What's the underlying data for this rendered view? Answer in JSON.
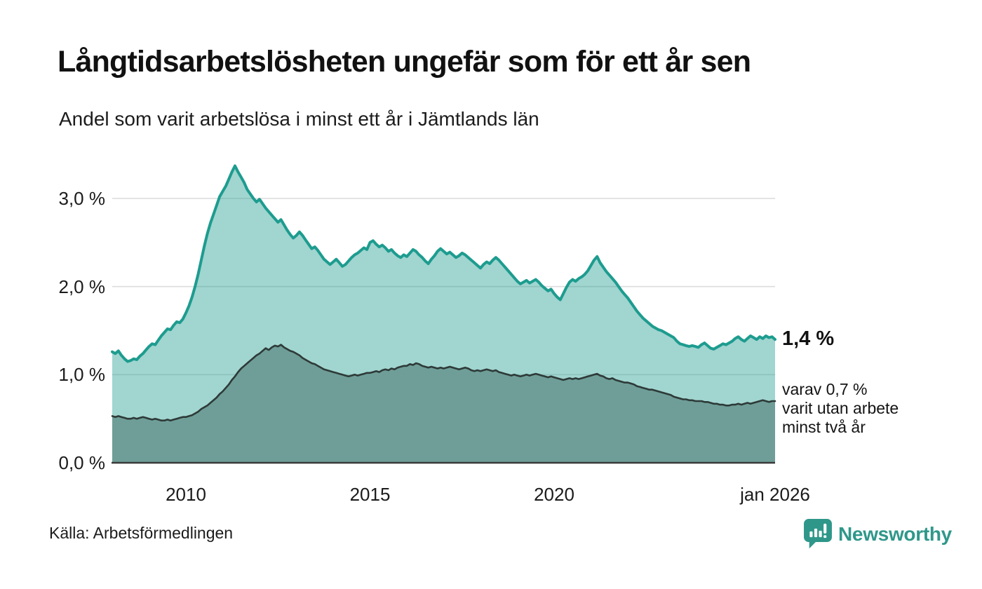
{
  "header": {
    "title": "Långtidsarbetslösheten ungefär som för ett år sen",
    "subtitle": "Andel som varit arbetslösa i minst ett år i Jämtlands län"
  },
  "chart_data": {
    "type": "area",
    "title": "Långtidsarbetslösheten ungefär som för ett år sen",
    "subtitle": "Andel som varit arbetslösa i minst ett år i Jämtlands län",
    "unit": "percent",
    "x_start": "2008-01",
    "x_end": "2026-01",
    "interval": "monthly",
    "grid": true,
    "ylim": [
      0,
      3.4
    ],
    "x_ticks": [
      {
        "index": 24,
        "label": "2010"
      },
      {
        "index": 84,
        "label": "2015"
      },
      {
        "index": 144,
        "label": "2020"
      },
      {
        "index": 216,
        "label": "jan 2026"
      }
    ],
    "y_ticks": [
      {
        "value": 0,
        "label": "0,0 %"
      },
      {
        "value": 1,
        "label": "1,0 %"
      },
      {
        "value": 2,
        "label": "2,0 %"
      },
      {
        "value": 3,
        "label": "3,0 %"
      }
    ],
    "series": [
      {
        "name": "Andel arbetslösa minst ett år",
        "line_color": "#1d9c8f",
        "fill_color": "rgba(30,155,143,0.42)",
        "end_value": 1.4,
        "values": [
          1.26,
          1.24,
          1.27,
          1.22,
          1.18,
          1.15,
          1.16,
          1.18,
          1.17,
          1.21,
          1.24,
          1.28,
          1.32,
          1.35,
          1.34,
          1.39,
          1.44,
          1.48,
          1.52,
          1.51,
          1.56,
          1.6,
          1.59,
          1.63,
          1.7,
          1.78,
          1.88,
          2,
          2.14,
          2.3,
          2.46,
          2.6,
          2.72,
          2.82,
          2.92,
          3.02,
          3.08,
          3.14,
          3.22,
          3.3,
          3.37,
          3.3,
          3.24,
          3.18,
          3.1,
          3.05,
          3,
          2.96,
          2.99,
          2.94,
          2.89,
          2.85,
          2.81,
          2.77,
          2.73,
          2.76,
          2.7,
          2.64,
          2.59,
          2.55,
          2.58,
          2.62,
          2.58,
          2.53,
          2.48,
          2.43,
          2.45,
          2.41,
          2.36,
          2.31,
          2.28,
          2.25,
          2.28,
          2.31,
          2.27,
          2.23,
          2.25,
          2.29,
          2.33,
          2.36,
          2.38,
          2.41,
          2.44,
          2.42,
          2.5,
          2.52,
          2.48,
          2.45,
          2.47,
          2.44,
          2.4,
          2.42,
          2.38,
          2.35,
          2.33,
          2.36,
          2.34,
          2.38,
          2.42,
          2.4,
          2.36,
          2.33,
          2.29,
          2.26,
          2.31,
          2.35,
          2.4,
          2.43,
          2.4,
          2.37,
          2.39,
          2.36,
          2.33,
          2.35,
          2.38,
          2.36,
          2.33,
          2.3,
          2.27,
          2.24,
          2.21,
          2.25,
          2.28,
          2.26,
          2.3,
          2.33,
          2.3,
          2.26,
          2.22,
          2.18,
          2.14,
          2.1,
          2.06,
          2.03,
          2.05,
          2.07,
          2.04,
          2.06,
          2.08,
          2.05,
          2.01,
          1.98,
          1.95,
          1.97,
          1.92,
          1.88,
          1.85,
          1.92,
          1.99,
          2.05,
          2.08,
          2.06,
          2.09,
          2.11,
          2.14,
          2.18,
          2.24,
          2.3,
          2.34,
          2.27,
          2.22,
          2.17,
          2.13,
          2.09,
          2.05,
          2,
          1.95,
          1.91,
          1.87,
          1.82,
          1.77,
          1.72,
          1.68,
          1.64,
          1.61,
          1.58,
          1.55,
          1.53,
          1.51,
          1.5,
          1.48,
          1.46,
          1.44,
          1.42,
          1.38,
          1.35,
          1.34,
          1.33,
          1.32,
          1.33,
          1.32,
          1.31,
          1.34,
          1.36,
          1.33,
          1.3,
          1.29,
          1.31,
          1.33,
          1.35,
          1.34,
          1.36,
          1.38,
          1.41,
          1.43,
          1.4,
          1.38,
          1.41,
          1.44,
          1.42,
          1.4,
          1.43,
          1.41,
          1.44,
          1.42,
          1.43,
          1.4
        ]
      },
      {
        "name": "Andel som varit utan arbete minst två år",
        "line_color": "#2d3a38",
        "fill_color": "#6f9e98",
        "end_value": 0.7,
        "values": [
          0.53,
          0.52,
          0.53,
          0.52,
          0.51,
          0.5,
          0.5,
          0.51,
          0.5,
          0.51,
          0.52,
          0.51,
          0.5,
          0.49,
          0.5,
          0.49,
          0.48,
          0.48,
          0.49,
          0.48,
          0.49,
          0.5,
          0.51,
          0.52,
          0.52,
          0.53,
          0.54,
          0.56,
          0.58,
          0.61,
          0.63,
          0.65,
          0.68,
          0.71,
          0.74,
          0.78,
          0.81,
          0.85,
          0.89,
          0.94,
          0.98,
          1.03,
          1.07,
          1.1,
          1.13,
          1.16,
          1.19,
          1.22,
          1.24,
          1.27,
          1.3,
          1.28,
          1.31,
          1.33,
          1.32,
          1.34,
          1.31,
          1.29,
          1.27,
          1.26,
          1.24,
          1.22,
          1.19,
          1.17,
          1.15,
          1.13,
          1.12,
          1.1,
          1.08,
          1.06,
          1.05,
          1.04,
          1.03,
          1.02,
          1.01,
          1,
          0.99,
          0.98,
          0.99,
          1,
          0.99,
          1,
          1.01,
          1.02,
          1.02,
          1.03,
          1.04,
          1.03,
          1.05,
          1.06,
          1.05,
          1.07,
          1.06,
          1.08,
          1.09,
          1.1,
          1.1,
          1.12,
          1.11,
          1.13,
          1.12,
          1.1,
          1.09,
          1.08,
          1.09,
          1.08,
          1.07,
          1.08,
          1.07,
          1.08,
          1.09,
          1.08,
          1.07,
          1.06,
          1.07,
          1.08,
          1.07,
          1.05,
          1.04,
          1.05,
          1.04,
          1.05,
          1.06,
          1.05,
          1.04,
          1.05,
          1.03,
          1.02,
          1.01,
          1,
          0.99,
          1,
          0.99,
          0.98,
          0.99,
          1,
          0.99,
          1,
          1.01,
          1,
          0.99,
          0.98,
          0.97,
          0.98,
          0.97,
          0.96,
          0.95,
          0.94,
          0.95,
          0.96,
          0.95,
          0.96,
          0.95,
          0.96,
          0.97,
          0.98,
          0.99,
          1,
          1.01,
          0.99,
          0.98,
          0.96,
          0.95,
          0.96,
          0.94,
          0.93,
          0.92,
          0.91,
          0.91,
          0.9,
          0.89,
          0.87,
          0.86,
          0.85,
          0.84,
          0.83,
          0.83,
          0.82,
          0.81,
          0.8,
          0.79,
          0.78,
          0.77,
          0.75,
          0.74,
          0.73,
          0.72,
          0.72,
          0.71,
          0.71,
          0.7,
          0.7,
          0.7,
          0.69,
          0.69,
          0.68,
          0.67,
          0.67,
          0.66,
          0.66,
          0.65,
          0.65,
          0.66,
          0.66,
          0.67,
          0.66,
          0.67,
          0.68,
          0.67,
          0.68,
          0.69,
          0.7,
          0.71,
          0.7,
          0.69,
          0.7,
          0.7
        ]
      }
    ],
    "annotations": {
      "end_value": "1,4 %",
      "end_note_lines": [
        "varav 0,7 %",
        "varit utan arbete",
        "minst två år"
      ]
    },
    "colors": {
      "accent_line": "#1d9c8f",
      "light_fill": "#a0d5d0",
      "dark_fill": "#6f9e98",
      "dark_line": "#2d3a38",
      "gridline": "#dcdcdc",
      "baseline": "#3a3a3a"
    }
  },
  "footer": {
    "source": "Källa: Arbetsförmedlingen",
    "brand": "Newsworthy",
    "brand_color": "#2f978a"
  }
}
